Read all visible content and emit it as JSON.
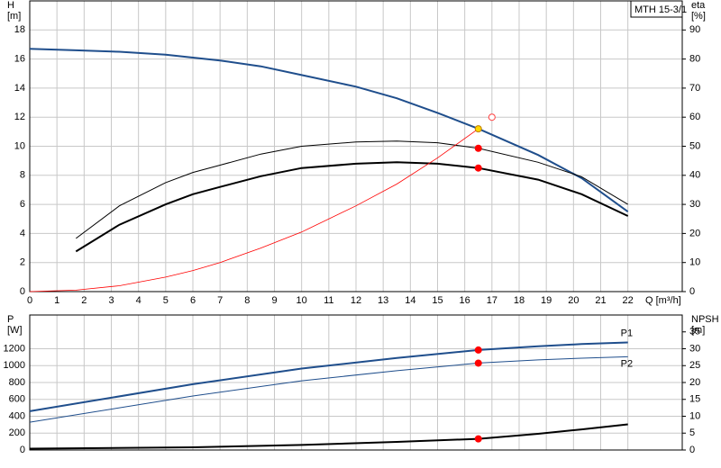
{
  "chart_data": [
    {
      "type": "line",
      "legend_box": "MTH 15-3/1",
      "ylabel": [
        "H",
        "[m]"
      ],
      "y2label": [
        "eta",
        "[%]"
      ],
      "xlabel": "Q [m³/h]",
      "xlim": [
        0,
        24
      ],
      "xticks": [
        0,
        1,
        2,
        3,
        4,
        5,
        6,
        7,
        8,
        9,
        10,
        11,
        12,
        13,
        14,
        15,
        16,
        17,
        18,
        19,
        20,
        21,
        22
      ],
      "ylim": [
        0,
        20
      ],
      "yticks": [
        0,
        2,
        4,
        6,
        8,
        10,
        12,
        14,
        16,
        18
      ],
      "y2lim": [
        0,
        100
      ],
      "y2ticks": [
        0,
        10,
        20,
        30,
        40,
        50,
        60,
        70,
        80,
        90
      ],
      "grid": true,
      "x": [
        0,
        1.7,
        3.3,
        5,
        6,
        7,
        8.5,
        10,
        12,
        13.5,
        15,
        16.5,
        18.7,
        20.3,
        22
      ],
      "series": [
        {
          "color": "#1f4e8c",
          "width": 2,
          "values": [
            16.7,
            16.6,
            16.5,
            16.3,
            16.1,
            15.9,
            15.5,
            14.9,
            14.1,
            13.3,
            12.3,
            11.2,
            9.4,
            7.8,
            5.5
          ]
        },
        {
          "color": "#000000",
          "width": 1,
          "axis": "y2",
          "values": [
            null,
            18.3,
            29.5,
            37.5,
            41,
            43.5,
            47.3,
            50,
            51.5,
            51.8,
            51.2,
            49.3,
            44.5,
            39.5,
            30
          ]
        },
        {
          "color": "#000000",
          "width": 2,
          "axis": "y2",
          "values": [
            null,
            13.8,
            23,
            30,
            33.5,
            36,
            39.7,
            42.5,
            44,
            44.5,
            44,
            42.5,
            38.5,
            33.5,
            26
          ]
        },
        {
          "color": "#ff0000",
          "width": 0.8,
          "values": [
            0,
            0.1,
            0.4,
            1.0,
            1.45,
            2.0,
            3.0,
            4.1,
            5.9,
            7.4,
            9.2,
            11.2,
            null,
            null,
            null
          ]
        }
      ],
      "markers": [
        {
          "x": 16.5,
          "y": 11.2,
          "color": "#ffd700",
          "fill": true
        },
        {
          "x": 17,
          "y": 12,
          "color": "#ff4040",
          "fill": false
        },
        {
          "x": 16.5,
          "y": 49.3,
          "axis": "y2",
          "color": "#ff0000",
          "fill": true
        },
        {
          "x": 16.5,
          "y": 42.5,
          "axis": "y2",
          "color": "#ff0000",
          "fill": true
        }
      ]
    },
    {
      "type": "line",
      "ylabel": [
        "P",
        "[W]"
      ],
      "y2label": [
        "NPSH",
        "[m]"
      ],
      "xlim": [
        0,
        24
      ],
      "ylim": [
        0,
        1600
      ],
      "yticks": [
        0,
        200,
        400,
        600,
        800,
        1000,
        1200
      ],
      "y2lim": [
        0,
        40
      ],
      "y2ticks": [
        0,
        5,
        10,
        15,
        20,
        25,
        30,
        35
      ],
      "grid": true,
      "x": [
        0,
        6,
        10,
        13.5,
        16.5,
        18.7,
        20.3,
        22
      ],
      "series": [
        {
          "name": "P1",
          "color": "#1f4e8c",
          "width": 2,
          "values": [
            460,
            780,
            965,
            1090,
            1185,
            1230,
            1255,
            1275
          ]
        },
        {
          "name": "P2",
          "color": "#1f4e8c",
          "width": 1,
          "values": [
            330,
            640,
            820,
            940,
            1030,
            1068,
            1088,
            1105
          ]
        },
        {
          "color": "#000000",
          "width": 2,
          "axis": "y2",
          "values": [
            0.4,
            0.8,
            1.5,
            2.4,
            3.3,
            4.8,
            6.1,
            7.6
          ]
        }
      ],
      "markers": [
        {
          "x": 16.5,
          "y": 1185,
          "color": "#ff0000",
          "fill": true
        },
        {
          "x": 16.5,
          "y": 1030,
          "color": "#ff0000",
          "fill": true
        },
        {
          "x": 16.5,
          "y": 3.3,
          "axis": "y2",
          "color": "#ff0000",
          "fill": true
        }
      ]
    }
  ]
}
